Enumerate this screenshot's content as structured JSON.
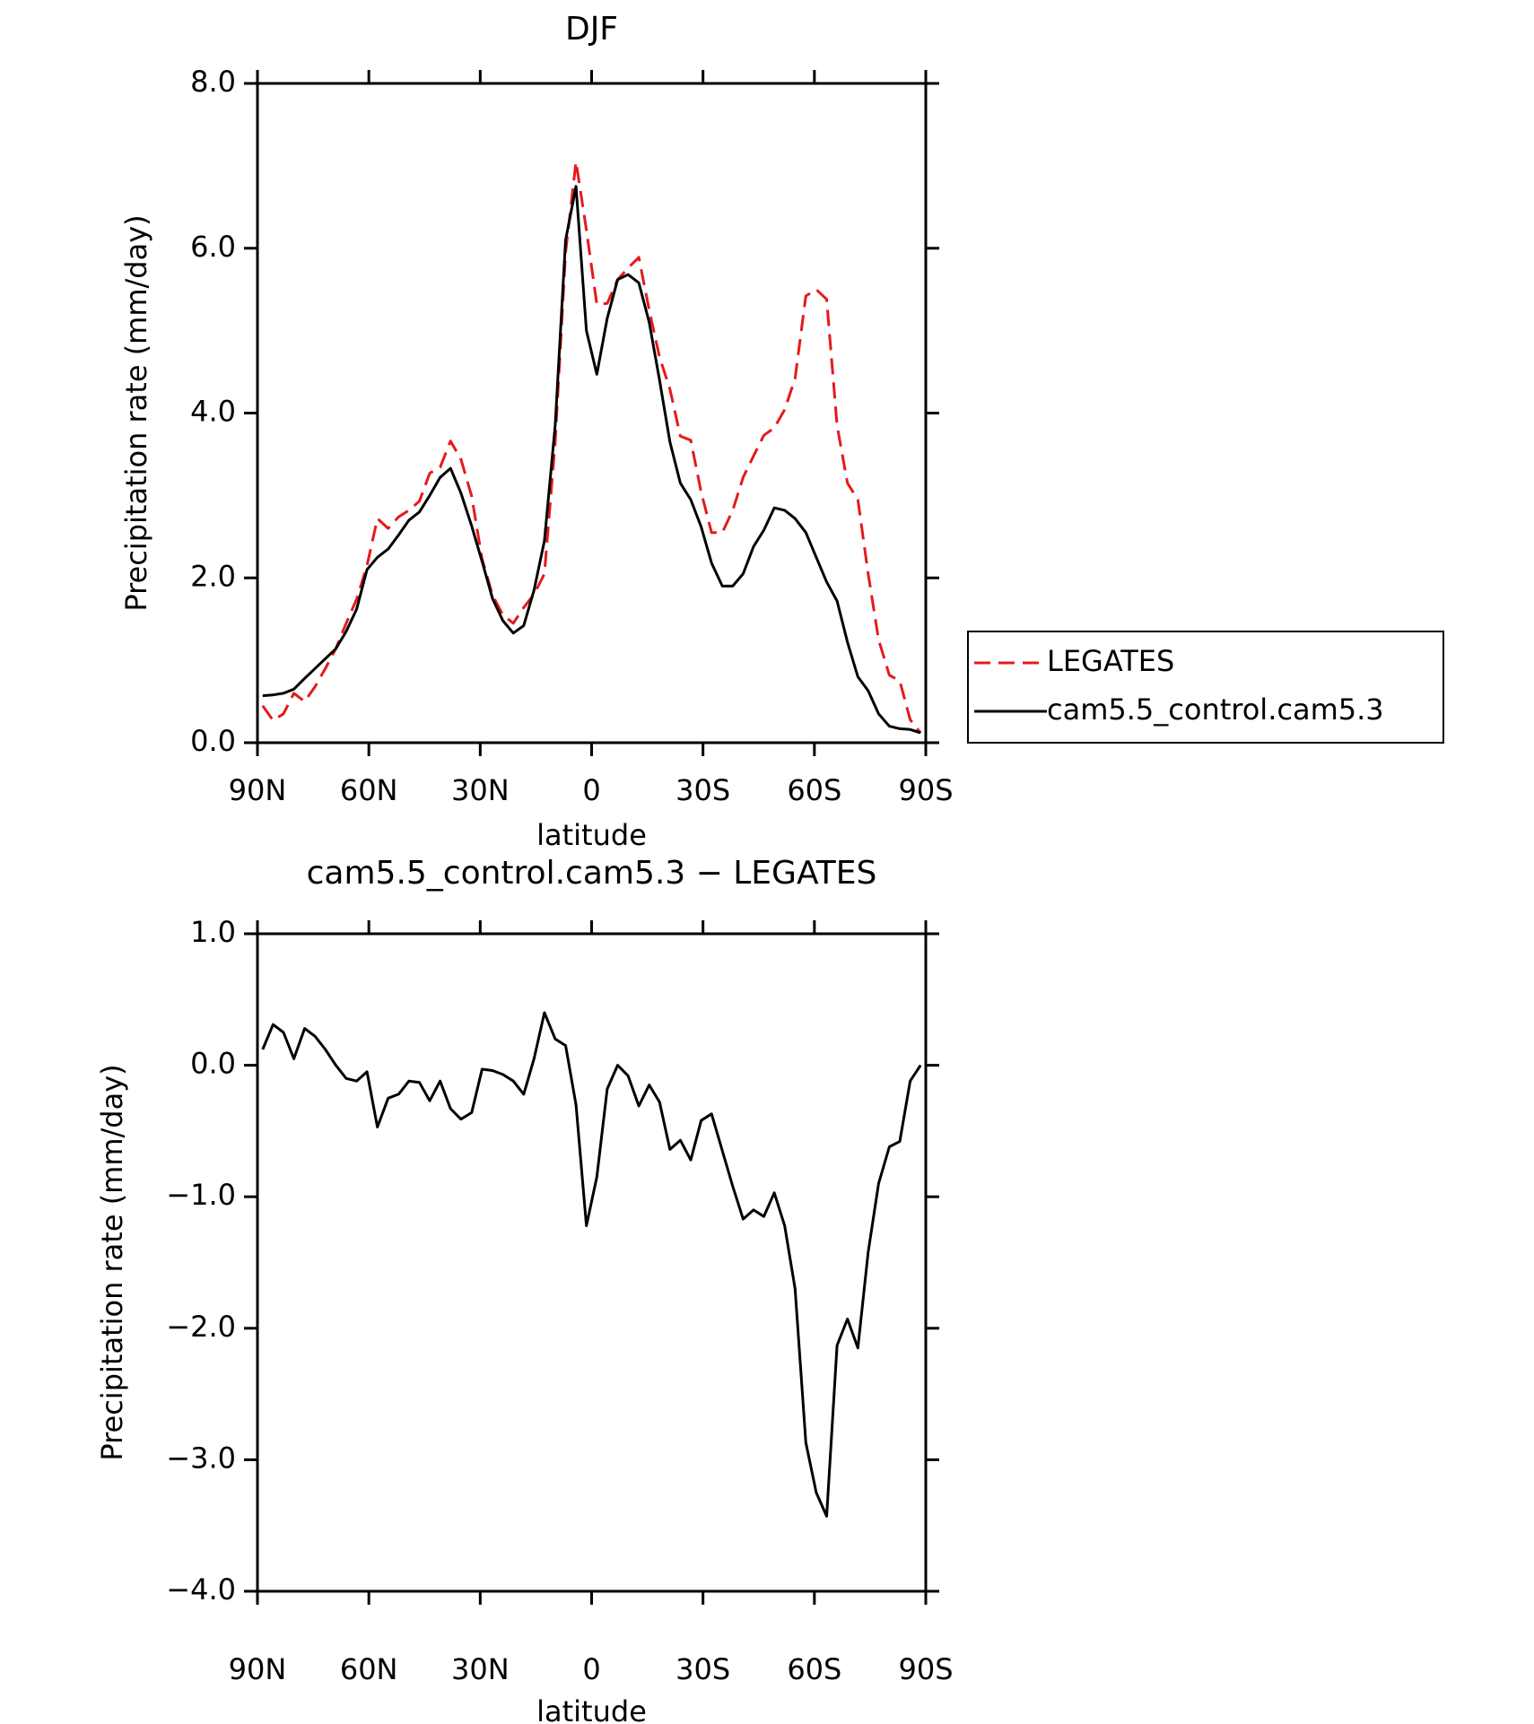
{
  "chart_data": [
    {
      "type": "line",
      "title": "DJF",
      "xlabel": "latitude",
      "ylabel": "Precipitation rate (mm/day)",
      "x": [
        88.6,
        85.8,
        83.0,
        80.2,
        77.3,
        74.5,
        71.7,
        68.9,
        66.1,
        63.3,
        60.5,
        57.7,
        54.8,
        52.0,
        49.2,
        46.4,
        43.6,
        40.8,
        38.0,
        35.2,
        32.3,
        29.5,
        26.7,
        23.9,
        21.1,
        18.3,
        15.5,
        12.7,
        9.8,
        7.0,
        4.2,
        1.4,
        -1.4,
        -4.2,
        -7.0,
        -9.8,
        -12.7,
        -15.5,
        -18.3,
        -21.1,
        -23.9,
        -26.7,
        -29.5,
        -32.3,
        -35.2,
        -38.0,
        -40.8,
        -43.6,
        -46.4,
        -49.2,
        -52.0,
        -54.8,
        -57.7,
        -60.5,
        -63.3,
        -66.1,
        -68.9,
        -71.7,
        -74.5,
        -77.3,
        -80.2,
        -83.0,
        -85.8,
        -88.6
      ],
      "series": [
        {
          "name": "LEGATES",
          "color": "#e41a1c",
          "dashed": true,
          "values": [
            0.45,
            0.27,
            0.35,
            0.6,
            0.5,
            0.68,
            0.9,
            1.14,
            1.45,
            1.74,
            2.15,
            2.72,
            2.6,
            2.74,
            2.82,
            2.93,
            3.27,
            3.34,
            3.66,
            3.44,
            2.99,
            2.23,
            1.79,
            1.55,
            1.45,
            1.64,
            1.8,
            2.05,
            3.65,
            5.95,
            7.05,
            6.22,
            5.32,
            5.33,
            5.62,
            5.76,
            5.89,
            5.25,
            4.68,
            4.29,
            3.72,
            3.67,
            3.04,
            2.55,
            2.55,
            2.82,
            3.22,
            3.48,
            3.73,
            3.82,
            4.04,
            4.42,
            5.42,
            5.5,
            5.38,
            3.85,
            3.15,
            2.95,
            2.05,
            1.25,
            0.82,
            0.75,
            0.28,
            0.12
          ]
        },
        {
          "name": "cam5.5_control.cam5.3",
          "color": "#000000",
          "dashed": false,
          "values": [
            0.57,
            0.58,
            0.6,
            0.65,
            0.78,
            0.9,
            1.02,
            1.14,
            1.35,
            1.62,
            2.1,
            2.25,
            2.35,
            2.52,
            2.7,
            2.8,
            3.0,
            3.22,
            3.33,
            3.03,
            2.63,
            2.2,
            1.75,
            1.48,
            1.33,
            1.42,
            1.85,
            2.45,
            3.85,
            6.1,
            6.75,
            5.0,
            4.47,
            5.15,
            5.62,
            5.68,
            5.58,
            5.1,
            4.4,
            3.65,
            3.15,
            2.95,
            2.62,
            2.18,
            1.9,
            1.9,
            2.05,
            2.38,
            2.58,
            2.85,
            2.82,
            2.72,
            2.55,
            2.25,
            1.95,
            1.72,
            1.22,
            0.8,
            0.63,
            0.35,
            0.2,
            0.17,
            0.16,
            0.12
          ]
        }
      ],
      "xlim": [
        90,
        -90
      ],
      "xticks": [
        {
          "value": 90,
          "label": "90N"
        },
        {
          "value": 60,
          "label": "60N"
        },
        {
          "value": 30,
          "label": "30N"
        },
        0,
        {
          "value": -30,
          "label": "30S"
        },
        {
          "value": -60,
          "label": "60S"
        },
        {
          "value": -90,
          "label": "90S"
        }
      ],
      "ylim": [
        0,
        8
      ],
      "yticks": [
        {
          "value": 0,
          "label": "0.0"
        },
        {
          "value": 2,
          "label": "2.0"
        },
        {
          "value": 4,
          "label": "4.0"
        },
        {
          "value": 6,
          "label": "6.0"
        },
        {
          "value": 8,
          "label": "8.0"
        }
      ],
      "legend": "right"
    },
    {
      "type": "line",
      "title": "cam5.5_control.cam5.3 − LEGATES",
      "xlabel": "latitude",
      "ylabel": "Precipitation rate (mm/day)",
      "x": [
        88.6,
        85.8,
        83.0,
        80.2,
        77.3,
        74.5,
        71.7,
        68.9,
        66.1,
        63.3,
        60.5,
        57.7,
        54.8,
        52.0,
        49.2,
        46.4,
        43.6,
        40.8,
        38.0,
        35.2,
        32.3,
        29.5,
        26.7,
        23.9,
        21.1,
        18.3,
        15.5,
        12.7,
        9.8,
        7.0,
        4.2,
        1.4,
        -1.4,
        -4.2,
        -7.0,
        -9.8,
        -12.7,
        -15.5,
        -18.3,
        -21.1,
        -23.9,
        -26.7,
        -29.5,
        -32.3,
        -35.2,
        -38.0,
        -40.8,
        -43.6,
        -46.4,
        -49.2,
        -52.0,
        -54.8,
        -57.7,
        -60.5,
        -63.3,
        -66.1,
        -68.9,
        -71.7,
        -74.5,
        -77.3,
        -80.2,
        -83.0,
        -85.8,
        -88.6
      ],
      "series": [
        {
          "color": "#000000",
          "dashed": false,
          "values": [
            0.12,
            0.31,
            0.25,
            0.05,
            0.28,
            0.22,
            0.12,
            0.0,
            -0.1,
            -0.12,
            -0.05,
            -0.47,
            -0.25,
            -0.22,
            -0.12,
            -0.13,
            -0.27,
            -0.12,
            -0.33,
            -0.41,
            -0.36,
            -0.03,
            -0.04,
            -0.07,
            -0.12,
            -0.22,
            0.05,
            0.4,
            0.2,
            0.15,
            -0.3,
            -1.22,
            -0.85,
            -0.18,
            0.0,
            -0.08,
            -0.31,
            -0.15,
            -0.28,
            -0.64,
            -0.57,
            -0.72,
            -0.42,
            -0.37,
            -0.65,
            -0.92,
            -1.17,
            -1.1,
            -1.15,
            -0.97,
            -1.22,
            -1.7,
            -2.87,
            -3.25,
            -3.43,
            -2.13,
            -1.93,
            -2.15,
            -1.42,
            -0.9,
            -0.62,
            -0.58,
            -0.12,
            0.0
          ]
        }
      ],
      "xlim": [
        90,
        -90
      ],
      "xticks": [
        {
          "value": 90,
          "label": "90N"
        },
        {
          "value": 60,
          "label": "60N"
        },
        {
          "value": 30,
          "label": "30N"
        },
        0,
        {
          "value": -30,
          "label": "30S"
        },
        {
          "value": -60,
          "label": "60S"
        },
        {
          "value": -90,
          "label": "90S"
        }
      ],
      "ylim": [
        -4,
        1
      ],
      "yticks": [
        {
          "value": -4,
          "label": "−4.0"
        },
        {
          "value": -3,
          "label": "−3.0"
        },
        {
          "value": -2,
          "label": "−2.0"
        },
        {
          "value": -1,
          "label": "−1.0"
        },
        {
          "value": 0,
          "label": "0.0"
        },
        {
          "value": 1,
          "label": "1.0"
        }
      ]
    }
  ]
}
